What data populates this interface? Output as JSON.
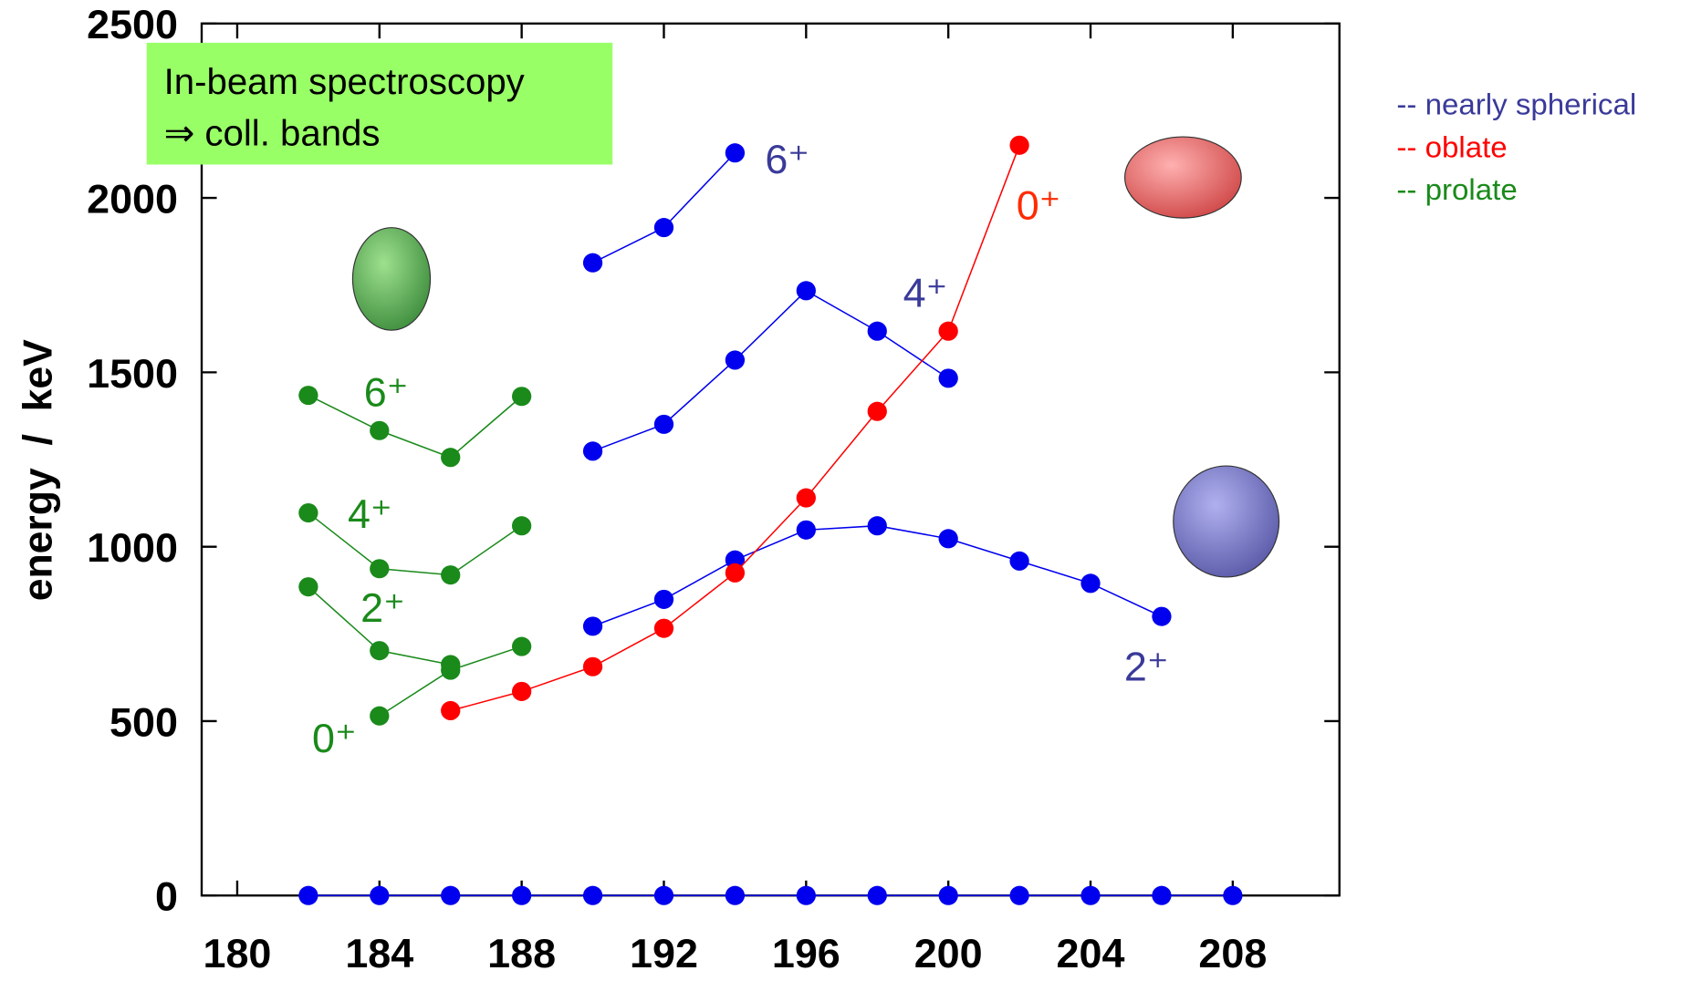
{
  "chart_data": {
    "type": "line",
    "ylabel": "energy  /  keV",
    "box_text": [
      "In-beam spectroscopy",
      "⇒  coll. bands"
    ],
    "x": [
      182,
      184,
      186,
      188,
      190,
      192,
      194,
      196,
      198,
      200,
      202,
      204,
      206,
      208
    ],
    "xlim": [
      179,
      211
    ],
    "xticks": [
      180,
      184,
      188,
      192,
      196,
      200,
      204,
      208
    ],
    "ylim": [
      0,
      2500
    ],
    "yticks": [
      0,
      500,
      1000,
      1500,
      2000,
      2500
    ],
    "series": [
      {
        "color": "#0000ee",
        "values": [
          0,
          0,
          0,
          0,
          0,
          0,
          0,
          0,
          0,
          0,
          0,
          0,
          0,
          0
        ]
      },
      {
        "color": "#0000ee",
        "values": [
          null,
          null,
          null,
          null,
          772,
          849,
          962,
          1048,
          1060,
          1023,
          959,
          895,
          800,
          null
        ]
      },
      {
        "color": "#0000ee",
        "values": [
          null,
          null,
          null,
          null,
          1274,
          1351,
          1535,
          1734,
          1618,
          1483,
          null,
          null,
          null,
          null
        ]
      },
      {
        "color": "#0000ee",
        "values": [
          null,
          null,
          null,
          null,
          1814,
          1915,
          2129,
          null,
          null,
          null,
          null,
          null,
          null,
          null
        ]
      },
      {
        "color": "#ff0000",
        "values": [
          null,
          null,
          530,
          585,
          656,
          766,
          925,
          1140,
          1388,
          1618,
          2151,
          null,
          null,
          null
        ]
      },
      {
        "color": "#1a8a1a",
        "values": [
          null,
          515,
          646,
          714,
          null,
          null,
          null,
          null,
          null,
          null,
          null,
          null,
          null,
          null
        ]
      },
      {
        "color": "#1a8a1a",
        "values": [
          885,
          702,
          662,
          null,
          null,
          null,
          null,
          null,
          null,
          null,
          null,
          null,
          null,
          null
        ]
      },
      {
        "color": "#1a8a1a",
        "values": [
          1097,
          937,
          919,
          1060,
          null,
          null,
          null,
          null,
          null,
          null,
          null,
          null,
          null,
          null
        ]
      },
      {
        "color": "#1a8a1a",
        "values": [
          1434,
          1333,
          1256,
          1431,
          null,
          null,
          null,
          null,
          null,
          null,
          null,
          null,
          null,
          null
        ]
      }
    ],
    "annotations": [
      {
        "text": "6⁺",
        "color": "#3a3a9a"
      },
      {
        "text": "4⁺",
        "color": "#3a3a9a"
      },
      {
        "text": "2⁺",
        "color": "#3a3a9a"
      },
      {
        "text": "0⁺",
        "color": "#ff2a00"
      },
      {
        "text": "6⁺",
        "color": "#1a8a1a"
      },
      {
        "text": "4⁺",
        "color": "#1a8a1a"
      },
      {
        "text": "2⁺",
        "color": "#1a8a1a"
      },
      {
        "text": "0⁺",
        "color": "#1a8a1a"
      }
    ],
    "legend": [
      {
        "text": "-- nearly spherical",
        "color": "#3a3a9a"
      },
      {
        "text": "-- oblate",
        "color": "#ff0000"
      },
      {
        "text": "-- prolate",
        "color": "#1a8a1a"
      }
    ]
  }
}
